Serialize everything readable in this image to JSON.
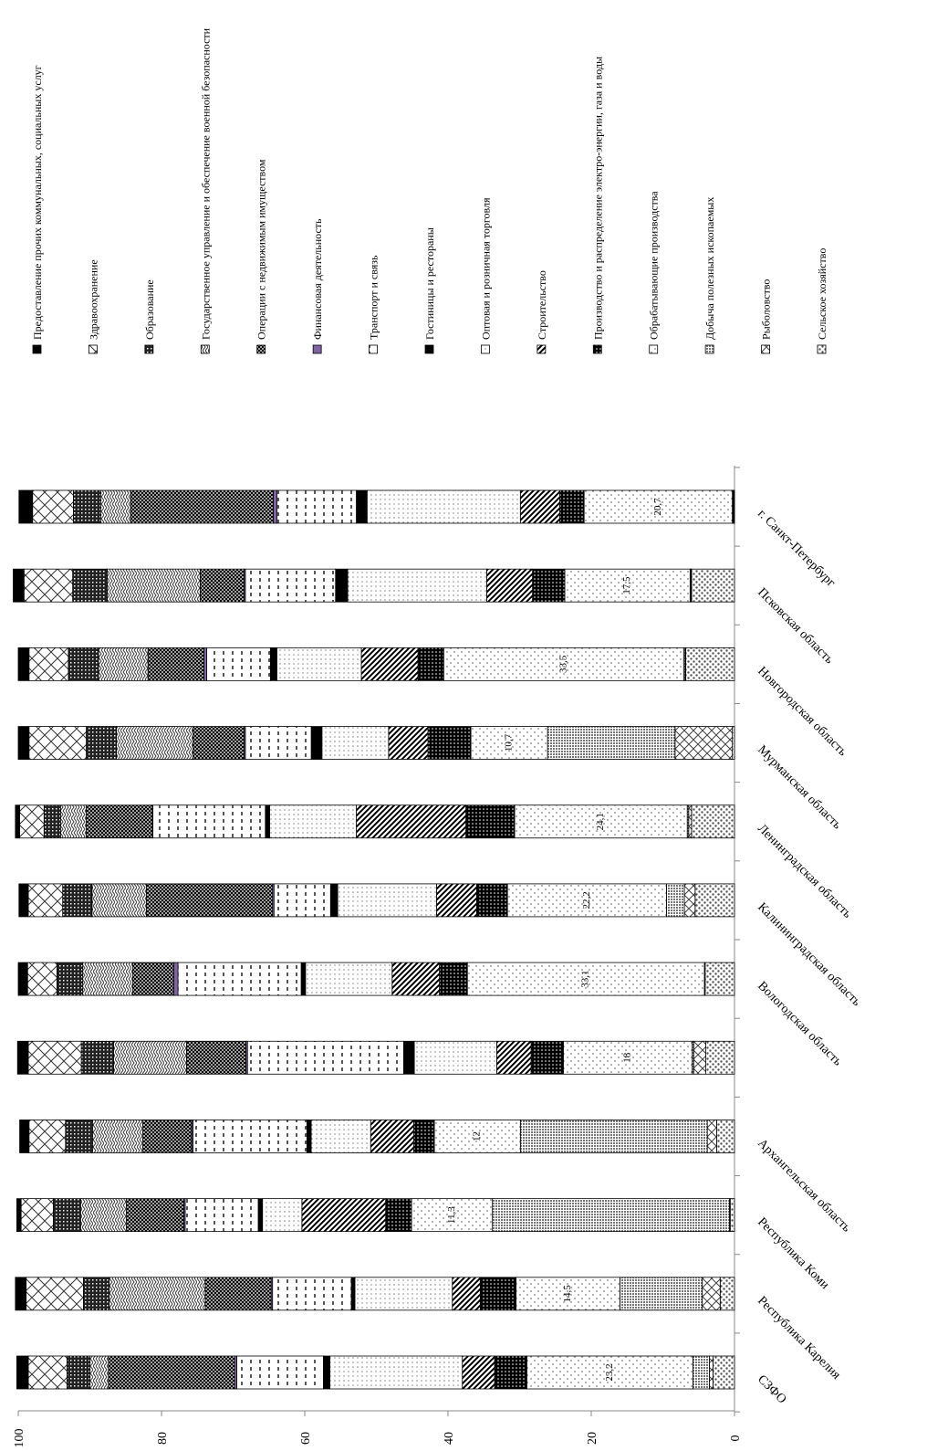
{
  "chart_data": {
    "type": "bar",
    "orientation": "horizontal",
    "stacked": true,
    "categories": [
      "СЗФО",
      "Республика Карелия",
      "Республика Коми",
      "Архангельская область",
      null,
      "Вологодская область",
      "Калининградская область",
      "Ленинградская область",
      "Мурманская область",
      "Новгородская область",
      "Псковская область",
      "г. Санкт-Петербург"
    ],
    "ylim": [
      0,
      100
    ],
    "yticks": [
      0,
      20,
      40,
      60,
      80,
      100
    ],
    "series": [
      {
        "name": "Сельское хозяйство",
        "color": "#808080",
        "values": [
          3.0,
          2.0,
          0.6,
          2.5,
          4.0,
          4.1,
          5.5,
          6.0,
          0.3,
          6.8,
          6.0,
          0.1
        ]
      },
      {
        "name": "Рыболовство",
        "color": "#ffffff",
        "values": [
          0.5,
          2.5,
          0.1,
          1.3,
          1.7,
          0.0,
          1.5,
          0.4,
          8.0,
          0.1,
          0.1,
          0.1
        ]
      },
      {
        "name": "Добыча полезных ископаемых",
        "color": "#8c8c8c",
        "values": [
          2.3,
          11.5,
          33.1,
          26.1,
          0.2,
          0.1,
          2.5,
          0.2,
          17.8,
          0.2,
          0.1,
          0.1
        ]
      },
      {
        "name": "Обрабатывающие производства",
        "color": "#ffffff",
        "values": [
          23.2,
          14.5,
          11.3,
          12,
          18,
          33.1,
          22.2,
          24.1,
          10.7,
          33.5,
          17.5,
          20.7
        ],
        "value_labels": [
          "23,2",
          "14,5",
          "11,3",
          "12",
          "18",
          "33,1",
          "22,2",
          "24,1",
          "10,7",
          "33,5",
          "17,5",
          "20,7"
        ]
      },
      {
        "name": "Производство и распределение электро-энергии, газа и воды",
        "color": "#1a1a1a",
        "values": [
          4.5,
          5.0,
          3.6,
          2.9,
          4.5,
          3.9,
          4.3,
          6.8,
          6.0,
          3.6,
          4.5,
          3.4
        ]
      },
      {
        "name": "Строительство",
        "color": "#555555",
        "values": [
          4.5,
          3.9,
          11.7,
          6.0,
          4.8,
          6.6,
          5.6,
          15.3,
          5.5,
          7.9,
          6.4,
          5.5
        ]
      },
      {
        "name": "Оптовая и розничная торговля",
        "color": "#e6e6e6",
        "values": [
          18.5,
          13.6,
          5.5,
          8.3,
          11.5,
          12.1,
          13.8,
          12.1,
          9.3,
          11.8,
          19.4,
          21.4
        ]
      },
      {
        "name": "Гостиницы и рестораны",
        "color": "#000000",
        "values": [
          0.9,
          0.5,
          0.6,
          0.6,
          1.5,
          0.6,
          1.0,
          0.6,
          1.5,
          0.9,
          1.7,
          1.5
        ]
      },
      {
        "name": "Транспорт и связь",
        "color": "#f2f2f2",
        "values": [
          12.1,
          11.0,
          10.2,
          15.9,
          21.8,
          17.2,
          7.9,
          15.7,
          9.2,
          8.9,
          12.6,
          11.1
        ]
      },
      {
        "name": "Финансовая деятельность",
        "color": "#8064a2",
        "values": [
          0.3,
          0.2,
          0.2,
          0.2,
          0.2,
          0.6,
          0.2,
          0.1,
          0.2,
          0.4,
          0.2,
          0.5
        ]
      },
      {
        "name": "Операции с недвижимым имуществом",
        "color": "#404040",
        "values": [
          17.6,
          9.2,
          8.0,
          6.8,
          8.3,
          5.7,
          17.6,
          9.2,
          7.1,
          7.8,
          6.1,
          19.9
        ]
      },
      {
        "name": "Государственное управление и обеспечение военной безопасности",
        "color": "#bfbfbf",
        "values": [
          2.6,
          13.4,
          6.4,
          7.0,
          10.2,
          7.0,
          7.6,
          3.6,
          10.7,
          6.9,
          13.0,
          4.2
        ]
      },
      {
        "name": "Образование",
        "color": "#333333",
        "values": [
          3.2,
          3.6,
          3.8,
          3.8,
          4.5,
          3.6,
          4.1,
          2.3,
          4.2,
          4.2,
          4.8,
          3.8
        ]
      },
      {
        "name": "Здравоохранение",
        "color": "#ffffff",
        "values": [
          5.4,
          8.0,
          4.5,
          5.1,
          7.4,
          4.1,
          4.8,
          3.4,
          8.0,
          5.5,
          6.8,
          5.7
        ]
      },
      {
        "name": "Предоставление прочих коммунальных, социальных услуг",
        "color": "#000000",
        "values": [
          1.6,
          1.5,
          0.6,
          1.3,
          1.5,
          1.3,
          1.3,
          0.6,
          1.5,
          1.5,
          1.5,
          1.9
        ]
      }
    ]
  }
}
